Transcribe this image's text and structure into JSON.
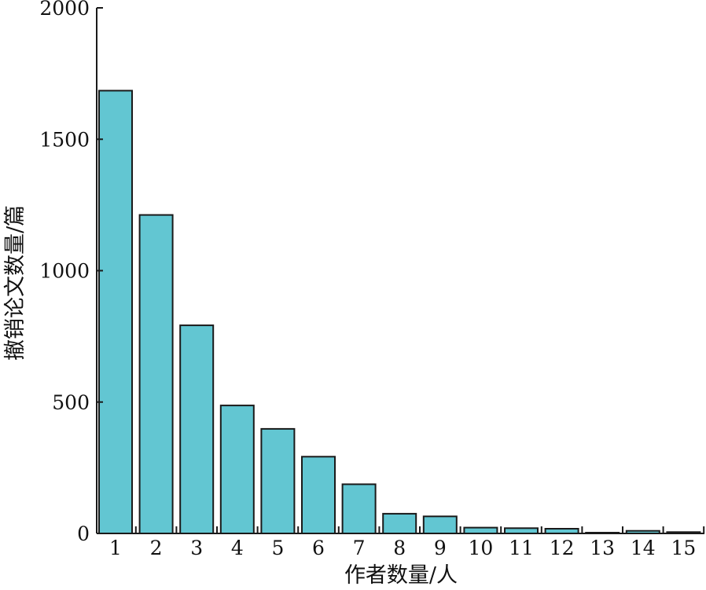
{
  "chart_data": {
    "type": "bar",
    "categories": [
      "1",
      "2",
      "3",
      "4",
      "5",
      "6",
      "7",
      "8",
      "9",
      "10",
      "11",
      "12",
      "13",
      "14",
      "15"
    ],
    "values": [
      1685,
      1212,
      792,
      487,
      398,
      292,
      187,
      75,
      65,
      22,
      20,
      18,
      3,
      10,
      5
    ],
    "xlabel": "作者数量/人",
    "ylabel": "撤销论文数量/篇",
    "ylim": [
      0,
      2000
    ],
    "yticks": [
      "0",
      "500",
      "1000",
      "1500",
      "2000"
    ],
    "grid": false,
    "bar_color": "#62c6d2",
    "bar_edge_color": "#1a1a1a"
  }
}
